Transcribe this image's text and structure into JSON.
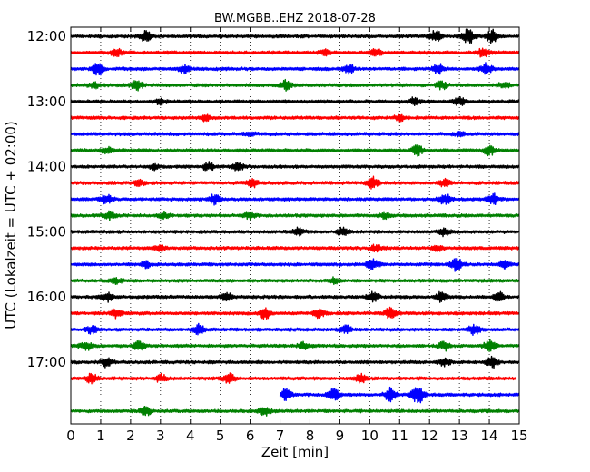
{
  "chart_data": {
    "type": "line",
    "title": "BW.MGBB..EHZ 2018-07-28",
    "xlabel": "Zeit  [min]",
    "ylabel": "UTC (Lokalzeit = UTC + 02:00)",
    "xlim": [
      0,
      15
    ],
    "x_ticks": [
      "0",
      "1",
      "2",
      "3",
      "4",
      "5",
      "6",
      "7",
      "8",
      "9",
      "10",
      "11",
      "12",
      "13",
      "14",
      "15"
    ],
    "y_ticks": [
      "12:00",
      "13:00",
      "14:00",
      "15:00",
      "16:00",
      "17:00"
    ],
    "vertical_grid": "dotted",
    "colors": [
      "#000000",
      "#ff0000",
      "#0000ff",
      "#008000"
    ],
    "series": [
      {
        "time": "12:00",
        "color": "#000000",
        "bursts": [
          {
            "x": 2.5,
            "a": 5
          },
          {
            "x": 12.2,
            "a": 6
          },
          {
            "x": 13.3,
            "a": 8
          },
          {
            "x": 14.1,
            "a": 7
          }
        ]
      },
      {
        "time": "12:15",
        "color": "#ff0000",
        "bursts": [
          {
            "x": 1.5,
            "a": 5
          },
          {
            "x": 8.5,
            "a": 3
          },
          {
            "x": 10.2,
            "a": 4
          },
          {
            "x": 13.8,
            "a": 5
          }
        ]
      },
      {
        "time": "12:30",
        "color": "#0000ff",
        "bursts": [
          {
            "x": 0.9,
            "a": 7
          },
          {
            "x": 3.8,
            "a": 4
          },
          {
            "x": 9.3,
            "a": 5
          },
          {
            "x": 12.3,
            "a": 5
          },
          {
            "x": 13.9,
            "a": 6
          }
        ]
      },
      {
        "time": "12:45",
        "color": "#008000",
        "bursts": [
          {
            "x": 0.8,
            "a": 3
          },
          {
            "x": 2.2,
            "a": 5
          },
          {
            "x": 7.2,
            "a": 5
          },
          {
            "x": 12.4,
            "a": 4
          },
          {
            "x": 14.5,
            "a": 3
          }
        ]
      },
      {
        "time": "13:00",
        "color": "#000000",
        "bursts": [
          {
            "x": 3.0,
            "a": 3
          },
          {
            "x": 11.5,
            "a": 4
          },
          {
            "x": 13.0,
            "a": 4
          }
        ]
      },
      {
        "time": "13:15",
        "color": "#ff0000",
        "bursts": [
          {
            "x": 4.5,
            "a": 3
          },
          {
            "x": 11.0,
            "a": 3
          }
        ]
      },
      {
        "time": "13:30",
        "color": "#0000ff",
        "bursts": [
          {
            "x": 6.0,
            "a": 2
          },
          {
            "x": 13.0,
            "a": 2
          }
        ]
      },
      {
        "time": "13:45",
        "color": "#008000",
        "bursts": [
          {
            "x": 1.2,
            "a": 3
          },
          {
            "x": 11.6,
            "a": 5
          },
          {
            "x": 14.0,
            "a": 5
          }
        ]
      },
      {
        "time": "14:00",
        "color": "#000000",
        "bursts": [
          {
            "x": 2.8,
            "a": 3
          },
          {
            "x": 4.6,
            "a": 4
          },
          {
            "x": 5.6,
            "a": 4
          }
        ]
      },
      {
        "time": "14:15",
        "color": "#ff0000",
        "bursts": [
          {
            "x": 2.3,
            "a": 3
          },
          {
            "x": 6.1,
            "a": 4
          },
          {
            "x": 10.1,
            "a": 6
          },
          {
            "x": 12.5,
            "a": 4
          }
        ]
      },
      {
        "time": "14:30",
        "color": "#0000ff",
        "bursts": [
          {
            "x": 1.2,
            "a": 5
          },
          {
            "x": 4.8,
            "a": 5
          },
          {
            "x": 12.5,
            "a": 6
          },
          {
            "x": 14.1,
            "a": 6
          }
        ]
      },
      {
        "time": "14:45",
        "color": "#008000",
        "bursts": [
          {
            "x": 1.3,
            "a": 4
          },
          {
            "x": 3.1,
            "a": 3
          },
          {
            "x": 6.0,
            "a": 3
          },
          {
            "x": 10.5,
            "a": 3
          }
        ]
      },
      {
        "time": "15:00",
        "color": "#000000",
        "bursts": [
          {
            "x": 7.6,
            "a": 4
          },
          {
            "x": 9.1,
            "a": 4
          },
          {
            "x": 12.5,
            "a": 4
          }
        ]
      },
      {
        "time": "15:15",
        "color": "#ff0000",
        "bursts": [
          {
            "x": 3.0,
            "a": 3
          },
          {
            "x": 10.2,
            "a": 3
          },
          {
            "x": 12.3,
            "a": 3
          }
        ]
      },
      {
        "time": "15:30",
        "color": "#0000ff",
        "bursts": [
          {
            "x": 2.5,
            "a": 3
          },
          {
            "x": 10.1,
            "a": 6
          },
          {
            "x": 12.9,
            "a": 7
          },
          {
            "x": 14.5,
            "a": 4
          }
        ]
      },
      {
        "time": "15:45",
        "color": "#008000",
        "bursts": [
          {
            "x": 1.5,
            "a": 3
          },
          {
            "x": 8.8,
            "a": 3
          }
        ]
      },
      {
        "time": "16:00",
        "color": "#000000",
        "bursts": [
          {
            "x": 1.2,
            "a": 5
          },
          {
            "x": 5.2,
            "a": 4
          },
          {
            "x": 10.1,
            "a": 5
          },
          {
            "x": 12.4,
            "a": 5
          },
          {
            "x": 14.3,
            "a": 5
          }
        ]
      },
      {
        "time": "16:15",
        "color": "#ff0000",
        "bursts": [
          {
            "x": 1.5,
            "a": 4
          },
          {
            "x": 6.5,
            "a": 6
          },
          {
            "x": 8.3,
            "a": 5
          },
          {
            "x": 10.7,
            "a": 6
          }
        ]
      },
      {
        "time": "16:30",
        "color": "#0000ff",
        "bursts": [
          {
            "x": 0.7,
            "a": 4
          },
          {
            "x": 4.3,
            "a": 5
          },
          {
            "x": 9.2,
            "a": 4
          },
          {
            "x": 13.5,
            "a": 5
          }
        ]
      },
      {
        "time": "16:45",
        "color": "#008000",
        "bursts": [
          {
            "x": 0.5,
            "a": 5
          },
          {
            "x": 2.3,
            "a": 5
          },
          {
            "x": 7.8,
            "a": 4
          },
          {
            "x": 12.5,
            "a": 5
          },
          {
            "x": 14.0,
            "a": 6
          }
        ]
      },
      {
        "time": "17:00",
        "color": "#000000",
        "bursts": [
          {
            "x": 1.2,
            "a": 5
          },
          {
            "x": 12.5,
            "a": 4
          },
          {
            "x": 14.1,
            "a": 6
          }
        ]
      },
      {
        "time": "17:15",
        "color": "#ff0000",
        "bursts": [
          {
            "x": 0.7,
            "a": 5
          },
          {
            "x": 3.0,
            "a": 4
          },
          {
            "x": 5.3,
            "a": 5
          },
          {
            "x": 9.7,
            "a": 5
          }
        ],
        "end": 14.9
      },
      {
        "time": "17:30",
        "color": "#0000ff",
        "bursts": [
          {
            "x": 7.2,
            "a": 6
          },
          {
            "x": 8.8,
            "a": 6
          },
          {
            "x": 10.7,
            "a": 7
          },
          {
            "x": 11.6,
            "a": 10
          }
        ],
        "start": 7.0
      },
      {
        "time": "17:45",
        "color": "#008000",
        "bursts": [
          {
            "x": 2.5,
            "a": 5
          },
          {
            "x": 6.5,
            "a": 5
          }
        ]
      }
    ]
  }
}
